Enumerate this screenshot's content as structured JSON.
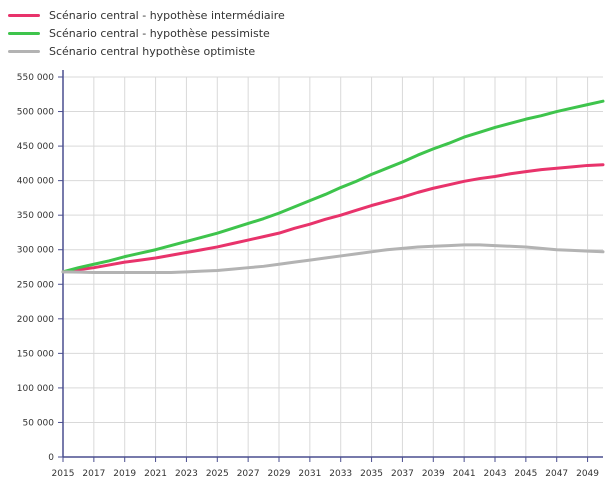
{
  "chart_data": {
    "type": "line",
    "title": "",
    "xlabel": "",
    "ylabel": "",
    "x": [
      2015,
      2016,
      2017,
      2018,
      2019,
      2020,
      2021,
      2022,
      2023,
      2024,
      2025,
      2026,
      2027,
      2028,
      2029,
      2030,
      2031,
      2032,
      2033,
      2034,
      2035,
      2036,
      2037,
      2038,
      2039,
      2040,
      2041,
      2042,
      2043,
      2044,
      2045,
      2046,
      2047,
      2048,
      2049,
      2050
    ],
    "x_tick_labels": [
      "2015",
      "2017",
      "2019",
      "2021",
      "2023",
      "2025",
      "2027",
      "2029",
      "2031",
      "2033",
      "2035",
      "2037",
      "2039",
      "2041",
      "2043",
      "2045",
      "2047",
      "2049"
    ],
    "x_ticks": [
      2015,
      2017,
      2019,
      2021,
      2023,
      2025,
      2027,
      2029,
      2031,
      2033,
      2035,
      2037,
      2039,
      2041,
      2043,
      2045,
      2047,
      2049
    ],
    "ylim": [
      0,
      550000
    ],
    "y_ticks": [
      0,
      50000,
      100000,
      150000,
      200000,
      250000,
      300000,
      350000,
      400000,
      450000,
      500000,
      550000
    ],
    "y_tick_labels": [
      "0",
      "50 000",
      "100 000",
      "150 000",
      "200 000",
      "250 000",
      "300 000",
      "350 000",
      "400 000",
      "450 000",
      "500 000",
      "550 000"
    ],
    "grid": true,
    "legend_position": "top-left",
    "series": [
      {
        "name": "Scénario central - hypothèse intermédiaire",
        "color": "#e8336b",
        "values": [
          268000,
          271000,
          274000,
          278000,
          282000,
          285000,
          288000,
          292000,
          296000,
          300000,
          304000,
          309000,
          314000,
          319000,
          324000,
          331000,
          337000,
          344000,
          350000,
          357000,
          364000,
          370000,
          376000,
          383000,
          389000,
          394000,
          399000,
          403000,
          406000,
          410000,
          413000,
          416000,
          418000,
          420000,
          422000,
          423000
        ]
      },
      {
        "name": "Scénario central - hypothèse pessimiste",
        "color": "#3ec44c",
        "values": [
          268000,
          274000,
          279000,
          284000,
          290000,
          295000,
          300000,
          306000,
          312000,
          318000,
          324000,
          331000,
          338000,
          345000,
          353000,
          362000,
          371000,
          380000,
          390000,
          399000,
          409000,
          418000,
          427000,
          437000,
          446000,
          454000,
          463000,
          470000,
          477000,
          483000,
          489000,
          494000,
          500000,
          505000,
          510000,
          515000
        ]
      },
      {
        "name": "Scénario central hypothèse optimiste",
        "color": "#b3b3b3",
        "values": [
          268000,
          267500,
          267000,
          267000,
          267000,
          267000,
          267000,
          267000,
          268000,
          269000,
          270000,
          272000,
          274000,
          276000,
          279000,
          282000,
          285000,
          288000,
          291000,
          294000,
          297000,
          300000,
          302000,
          304000,
          305000,
          306000,
          307000,
          307000,
          306000,
          305000,
          304000,
          302000,
          300000,
          299000,
          298000,
          297000
        ]
      }
    ]
  }
}
